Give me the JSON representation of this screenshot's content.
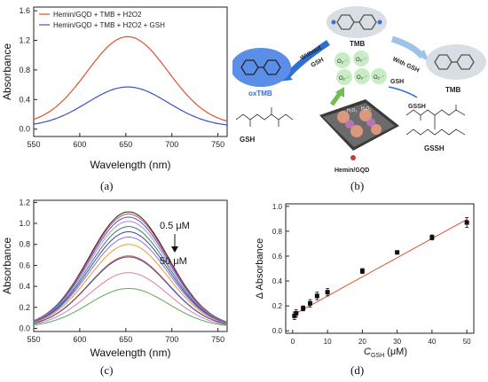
{
  "panels": {
    "a": {
      "caption": "(a)"
    },
    "b": {
      "caption": "(b)"
    },
    "c": {
      "caption": "(c)"
    },
    "d": {
      "caption": "(d)"
    }
  },
  "scheme": {
    "tmb_top": "TMB",
    "without_gsh": "Without\nGSH",
    "with_gsh": "With GSH",
    "oxtmb": "oxTMB",
    "gsh_label": "GSH",
    "gsh_arrow": "GSH",
    "gssh_arrow": "GSSH",
    "tmb_right": "TMB",
    "hemin_gqd": "Hemin/GQD",
    "gssh_label": "GSSH",
    "superoxide": "O2·⁻",
    "h2o2": "H2O2",
    "colors": {
      "oxtmb_blob": "#5b8ee6",
      "tmb_blob": "#d9dde4",
      "o2_blob": "#c8ecc4",
      "arrow_blue": "#2f6fd1",
      "arrow_green": "#6fbf4a"
    }
  },
  "chart_data": [
    {
      "id": "a",
      "type": "line",
      "xlabel": "Wavelength (nm)",
      "ylabel": "Absorbance",
      "xlim": [
        550,
        760
      ],
      "ylim": [
        -0.1,
        1.65
      ],
      "xticks": [
        550,
        600,
        650,
        700,
        750
      ],
      "yticks": [
        0.0,
        0.4,
        0.8,
        1.2,
        1.6
      ],
      "legend_position": "top-left",
      "series": [
        {
          "name": "Hemin/GQD + TMB + H2O2",
          "color": "#d9552e",
          "peak_x": 652,
          "peak": 1.25,
          "base": 0.05,
          "sigma": 44
        },
        {
          "name": "Hemin/GQD + TMB + H2O2 + GSH",
          "color": "#3b4fc4",
          "peak_x": 652,
          "peak": 0.57,
          "base": 0.03,
          "sigma": 44
        }
      ]
    },
    {
      "id": "c",
      "type": "line",
      "xlabel": "Wavelength (nm)",
      "ylabel": "Absorbance",
      "xlim": [
        550,
        760
      ],
      "ylim": [
        -0.03,
        1.22
      ],
      "xticks": [
        550,
        600,
        650,
        700,
        750
      ],
      "yticks": [
        0.0,
        0.2,
        0.4,
        0.6,
        0.8,
        1.0,
        1.2
      ],
      "annotation_top": "0.5 μM",
      "annotation_bottom": "50 μM",
      "series": [
        {
          "color": "#222222",
          "peak": 1.11
        },
        {
          "color": "#d94040",
          "peak": 1.09
        },
        {
          "color": "#3b5bd9",
          "peak": 1.06
        },
        {
          "color": "#c080d0",
          "peak": 1.02
        },
        {
          "color": "#2a8c5a",
          "peak": 0.97
        },
        {
          "color": "#4a3bb0",
          "peak": 0.92
        },
        {
          "color": "#8f6fe0",
          "peak": 0.87
        },
        {
          "color": "#e0a030",
          "peak": 0.8
        },
        {
          "color": "#d9552e",
          "peak": 0.69
        },
        {
          "color": "#3b4fc4",
          "peak": 0.68
        },
        {
          "color": "#e07bb0",
          "peak": 0.53
        },
        {
          "color": "#5aa85a",
          "peak": 0.38
        }
      ],
      "peak_x": 653,
      "sigma": 43,
      "base": 0.01
    },
    {
      "id": "d",
      "type": "scatter",
      "xlabel": "C",
      "xlabel_sub": "GSH",
      "xlabel_unit": " (μM)",
      "ylabel": "Δ Absorbance",
      "xlim": [
        -2,
        52
      ],
      "ylim": [
        -0.02,
        1.02
      ],
      "xticks": [
        0,
        10,
        20,
        30,
        40,
        50
      ],
      "yticks": [
        0.0,
        0.2,
        0.4,
        0.6,
        0.8,
        1.0
      ],
      "points": [
        {
          "x": 0.5,
          "y": 0.12,
          "err": 0.03
        },
        {
          "x": 1,
          "y": 0.14,
          "err": 0.03
        },
        {
          "x": 3,
          "y": 0.18,
          "err": 0.02
        },
        {
          "x": 5,
          "y": 0.22,
          "err": 0.03
        },
        {
          "x": 7,
          "y": 0.28,
          "err": 0.03
        },
        {
          "x": 10,
          "y": 0.31,
          "err": 0.03
        },
        {
          "x": 20,
          "y": 0.48,
          "err": 0.02
        },
        {
          "x": 30,
          "y": 0.63,
          "err": 0.01
        },
        {
          "x": 40,
          "y": 0.75,
          "err": 0.02
        },
        {
          "x": 50,
          "y": 0.87,
          "err": 0.04
        }
      ],
      "fit": {
        "x": [
          0,
          50
        ],
        "y": [
          0.125,
          0.895
        ],
        "color": "#d9552e"
      }
    }
  ]
}
